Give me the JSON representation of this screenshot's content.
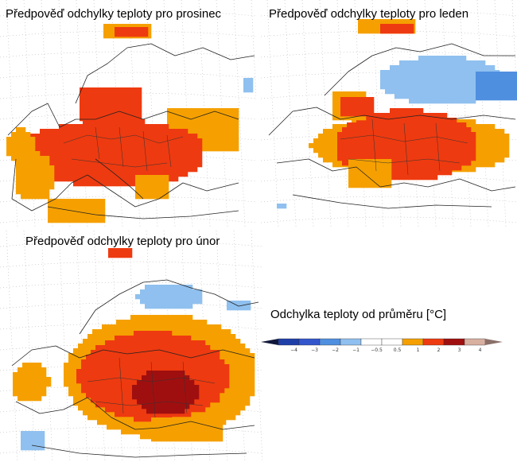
{
  "maps": [
    {
      "id": "dec",
      "title": "Předpověď odchylky teploty pro prosinec"
    },
    {
      "id": "jan",
      "title": "Předpověď odchylky teploty pro leden"
    },
    {
      "id": "feb",
      "title": "Předpověď odchylky teploty pro únor"
    }
  ],
  "legend": {
    "title": "Odchylka teploty od průměru [°C]",
    "bins": [
      {
        "label": "−4",
        "color": "#1f3fa8"
      },
      {
        "label": "−3",
        "color": "#3355cc"
      },
      {
        "label": "−2",
        "color": "#4f8fe0"
      },
      {
        "label": "−1",
        "color": "#8fc0ef"
      },
      {
        "label": "−0.5",
        "color": "#ffffff"
      },
      {
        "label": "0.5",
        "color": "#ffffff"
      },
      {
        "label": "1",
        "color": "#f5a000"
      },
      {
        "label": "2",
        "color": "#ee3a10"
      },
      {
        "label": "3",
        "color": "#a00f0f"
      },
      {
        "label": "4",
        "color": "#d8b0a0"
      }
    ],
    "end_low_color": "#10183a",
    "end_high_color": "#8a7068"
  }
}
